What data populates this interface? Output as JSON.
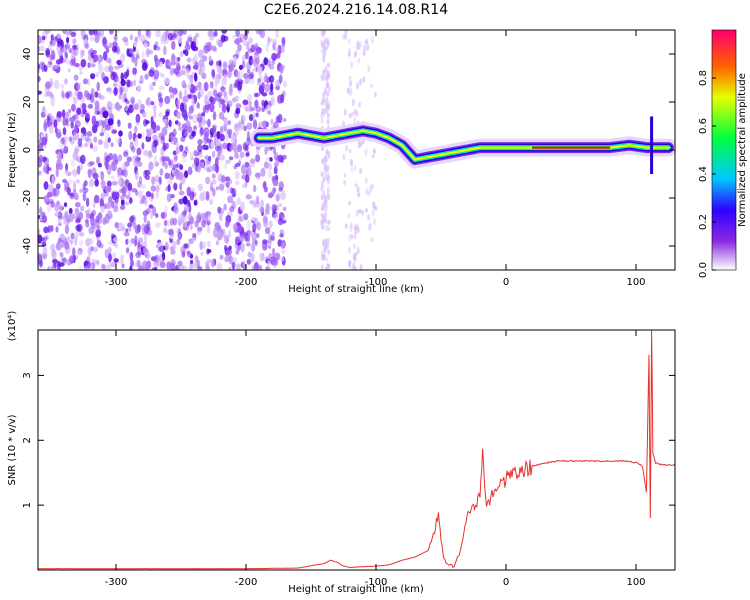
{
  "title": "C2E6.2024.216.14.08.R14",
  "colors": {
    "snr_line": "#e8302a",
    "spectrogram_band": [
      "#2a00d8",
      "#00e0ff",
      "#00ff40",
      "#ffff00",
      "#ff0000"
    ],
    "noise": "#7a2cf0"
  },
  "chart_data": [
    {
      "type": "heatmap",
      "title": "C2E6.2024.216.14.08.R14",
      "xlabel": "Height of straight line (km)",
      "ylabel": "Frequency (Hz)",
      "xlim": [
        -360,
        130
      ],
      "ylim": [
        -50,
        50
      ],
      "xticks": [
        -300,
        -200,
        -100,
        0,
        100
      ],
      "yticks": [
        -40,
        -20,
        0,
        20,
        40
      ],
      "colorbar": {
        "label": "Normalized spectral amplitude",
        "range": [
          0,
          1
        ],
        "ticks": [
          0.0,
          0.2,
          0.4,
          0.6,
          0.8
        ],
        "colormap": "rainbow (purple to red)"
      },
      "signal_ridge": {
        "x": [
          -190,
          -180,
          -170,
          -160,
          -150,
          -140,
          -130,
          -120,
          -110,
          -100,
          -90,
          -80,
          -70,
          -60,
          -50,
          -40,
          -30,
          -20,
          -10,
          0,
          20,
          40,
          60,
          80,
          95,
          108,
          115,
          125
        ],
        "y": [
          5,
          5,
          6,
          7,
          6,
          5,
          6,
          7,
          8,
          7,
          5,
          2,
          -4,
          -3,
          -2,
          -1,
          0,
          1,
          1,
          1,
          1,
          1,
          1,
          1,
          2,
          1,
          1,
          1
        ]
      },
      "noise_region": "broadband noise for x < -170 km"
    },
    {
      "type": "line",
      "xlabel": "Height of straight line (km)",
      "ylabel": "SNR (10 * v/v)",
      "y_multiplier": "(x10⁴)",
      "xlim": [
        -360,
        130
      ],
      "ylim": [
        0,
        3.7
      ],
      "xticks": [
        -300,
        -200,
        -100,
        0,
        100
      ],
      "yticks": [
        1,
        2,
        3
      ],
      "series": [
        {
          "x": [
            -360,
            -300,
            -250,
            -200,
            -160,
            -140,
            -135,
            -130,
            -125,
            -120,
            -110,
            -100,
            -90,
            -80,
            -70,
            -60,
            -55,
            -52,
            -50,
            -48,
            -45,
            -40,
            -35,
            -30,
            -25,
            -20,
            -18,
            -15,
            -10,
            -5,
            0,
            10,
            20,
            30,
            40,
            60,
            80,
            90,
            100,
            105,
            108,
            110,
            111,
            112,
            113,
            115,
            120,
            130
          ],
          "y": [
            0.02,
            0.02,
            0.02,
            0.02,
            0.03,
            0.1,
            0.15,
            0.12,
            0.06,
            0.04,
            0.05,
            0.06,
            0.08,
            0.15,
            0.2,
            0.3,
            0.6,
            0.9,
            0.5,
            0.2,
            0.1,
            0.05,
            0.3,
            0.8,
            1.0,
            1.1,
            1.9,
            1.0,
            1.2,
            1.3,
            1.4,
            1.5,
            1.6,
            1.65,
            1.68,
            1.68,
            1.68,
            1.68,
            1.66,
            1.6,
            1.2,
            3.3,
            0.8,
            3.7,
            1.8,
            1.65,
            1.62,
            1.62
          ]
        }
      ]
    }
  ]
}
